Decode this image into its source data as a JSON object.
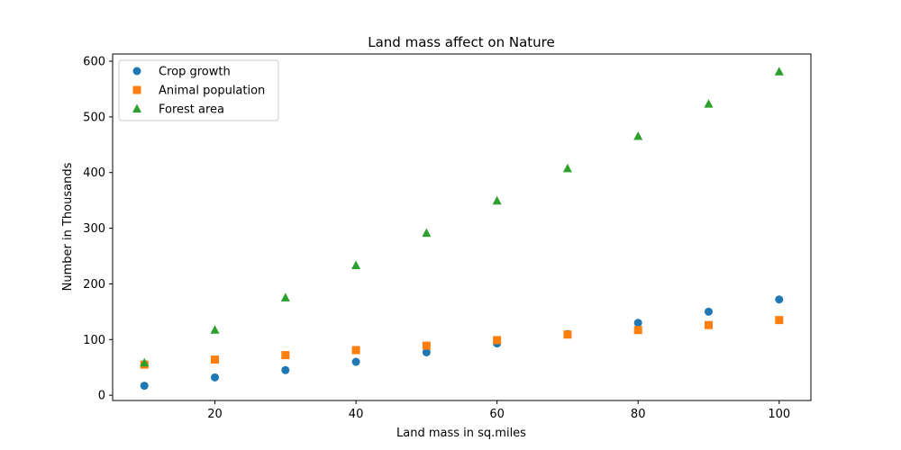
{
  "chart_data": {
    "type": "scatter",
    "title": "Land mass affect on Nature",
    "xlabel": "Land mass in sq.miles",
    "ylabel": "Number in Thousands",
    "x": [
      10,
      20,
      30,
      40,
      50,
      60,
      70,
      80,
      90,
      100
    ],
    "xlim": [
      5.5,
      104.5
    ],
    "ylim": [
      -9.5,
      613
    ],
    "xticks": [
      20,
      40,
      60,
      80,
      100
    ],
    "yticks": [
      0,
      100,
      200,
      300,
      400,
      500,
      600
    ],
    "grid": false,
    "legend_position": "upper-left",
    "series": [
      {
        "name": "Crop growth",
        "marker": "circle",
        "color": "#1f77b4",
        "values": [
          17,
          32,
          45,
          60,
          77,
          93,
          110,
          130,
          150,
          172
        ]
      },
      {
        "name": "Animal population",
        "marker": "square",
        "color": "#ff7f0e",
        "values": [
          55,
          64,
          72,
          81,
          89,
          99,
          109,
          117,
          126,
          135
        ]
      },
      {
        "name": "Forest area",
        "marker": "triangle",
        "color": "#2ca02c",
        "values": [
          58,
          117,
          175,
          233,
          291,
          349,
          407,
          465,
          523,
          581
        ]
      }
    ]
  }
}
